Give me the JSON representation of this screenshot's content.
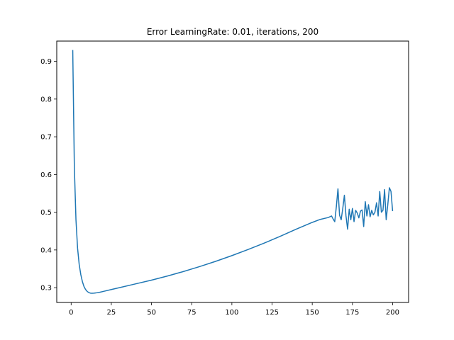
{
  "chart_data": {
    "type": "line",
    "title": "Error LearningRate: 0.01, iterations, 200",
    "xlabel": "",
    "ylabel": "",
    "xlim": [
      -8.95,
      209.95
    ],
    "ylim": [
      0.2608,
      0.9537
    ],
    "grid": false,
    "xticks": [
      0,
      25,
      50,
      75,
      100,
      125,
      150,
      175,
      200
    ],
    "yticks": [
      0.3,
      0.4,
      0.5,
      0.6,
      0.7,
      0.8,
      0.9
    ],
    "series": [
      {
        "color": "#1f77b4",
        "x": [
          1,
          2,
          3,
          4,
          5,
          6,
          7,
          8,
          9,
          10,
          11,
          12,
          13,
          14,
          15,
          16,
          18,
          20,
          25,
          30,
          40,
          50,
          60,
          70,
          80,
          90,
          100,
          110,
          120,
          130,
          140,
          150,
          155,
          160,
          162,
          163,
          164,
          165,
          166,
          167,
          168,
          169,
          170,
          171,
          172,
          173,
          174,
          175,
          176,
          177,
          178,
          179,
          180,
          181,
          182,
          183,
          184,
          185,
          186,
          187,
          188,
          189,
          190,
          191,
          192,
          193,
          194,
          195,
          196,
          197,
          198,
          199,
          200
        ],
        "y": [
          0.93,
          0.62,
          0.48,
          0.405,
          0.362,
          0.335,
          0.316,
          0.303,
          0.295,
          0.29,
          0.287,
          0.2855,
          0.2853,
          0.2855,
          0.286,
          0.2865,
          0.288,
          0.29,
          0.295,
          0.3,
          0.31,
          0.32,
          0.331,
          0.343,
          0.356,
          0.37,
          0.385,
          0.401,
          0.418,
          0.436,
          0.455,
          0.473,
          0.481,
          0.486,
          0.49,
          0.482,
          0.475,
          0.515,
          0.562,
          0.492,
          0.48,
          0.51,
          0.545,
          0.49,
          0.455,
          0.508,
          0.48,
          0.51,
          0.475,
          0.505,
          0.498,
          0.485,
          0.503,
          0.506,
          0.462,
          0.528,
          0.49,
          0.52,
          0.488,
          0.505,
          0.493,
          0.5,
          0.525,
          0.49,
          0.555,
          0.5,
          0.505,
          0.56,
          0.48,
          0.52,
          0.565,
          0.555,
          0.503
        ]
      }
    ]
  }
}
